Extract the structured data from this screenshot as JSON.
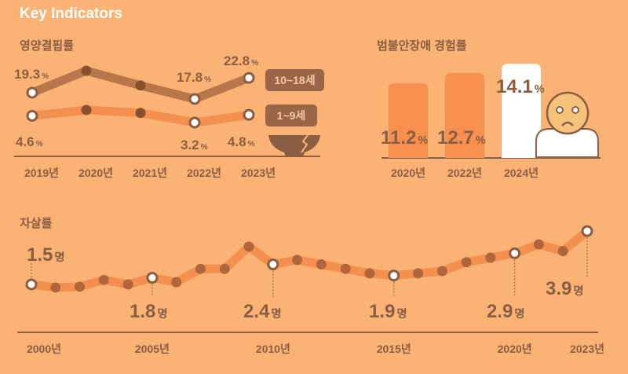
{
  "title": "Key Indicators",
  "colors": {
    "background": "#FBB275",
    "text": "#8A5E42",
    "line_teen": "#B8774A",
    "line_child": "#F38F4F",
    "bar": "#F7904E",
    "bar_highlight": "#FFFFFF",
    "point_dark": "#8A4F2C"
  },
  "chart_data": [
    {
      "type": "line",
      "title": "영양결핍률",
      "categories": [
        "2019년",
        "2020년",
        "2021년",
        "2022년",
        "2023년"
      ],
      "series": [
        {
          "name": "10~18세",
          "values": [
            19.3,
            24.5,
            21.0,
            17.8,
            22.8
          ],
          "labels": [
            "19.3",
            "",
            "",
            "17.8",
            "22.8"
          ]
        },
        {
          "name": "1~9세",
          "values": [
            4.6,
            5.8,
            5.2,
            3.2,
            4.8
          ],
          "labels": [
            "4.6",
            "",
            "",
            "3.2",
            "4.8"
          ]
        }
      ],
      "unit": "%",
      "icon": "broken-bowl-icon"
    },
    {
      "type": "bar",
      "title": "범불안장애 경험률",
      "categories": [
        "2020년",
        "2022년",
        "2024년"
      ],
      "values": [
        11.2,
        12.7,
        14.1
      ],
      "labels": [
        "11.2",
        "12.7",
        "14.1"
      ],
      "unit": "%",
      "icon": "sad-person-icon"
    },
    {
      "type": "line",
      "title": "자살률",
      "x": [
        2000,
        2001,
        2002,
        2003,
        2004,
        2005,
        2006,
        2007,
        2008,
        2009,
        2010,
        2011,
        2012,
        2013,
        2014,
        2015,
        2016,
        2017,
        2018,
        2019,
        2020,
        2021,
        2022,
        2023
      ],
      "values": [
        1.5,
        1.36,
        1.4,
        1.7,
        1.5,
        1.8,
        1.6,
        2.2,
        2.2,
        3.2,
        2.4,
        2.6,
        2.4,
        2.2,
        2.0,
        1.9,
        2.0,
        2.1,
        2.5,
        2.7,
        2.9,
        3.3,
        3.0,
        3.9
      ],
      "labeled_points": [
        {
          "year": 2000,
          "label": "1.5"
        },
        {
          "year": 2005,
          "label": "1.8"
        },
        {
          "year": 2010,
          "label": "2.4"
        },
        {
          "year": 2015,
          "label": "1.9"
        },
        {
          "year": 2020,
          "label": "2.9"
        },
        {
          "year": 2023,
          "label": "3.9"
        }
      ],
      "xtick_labels": [
        "2000년",
        "2005년",
        "2010년",
        "2015년",
        "2020년",
        "2023년"
      ],
      "unit": "명"
    }
  ]
}
